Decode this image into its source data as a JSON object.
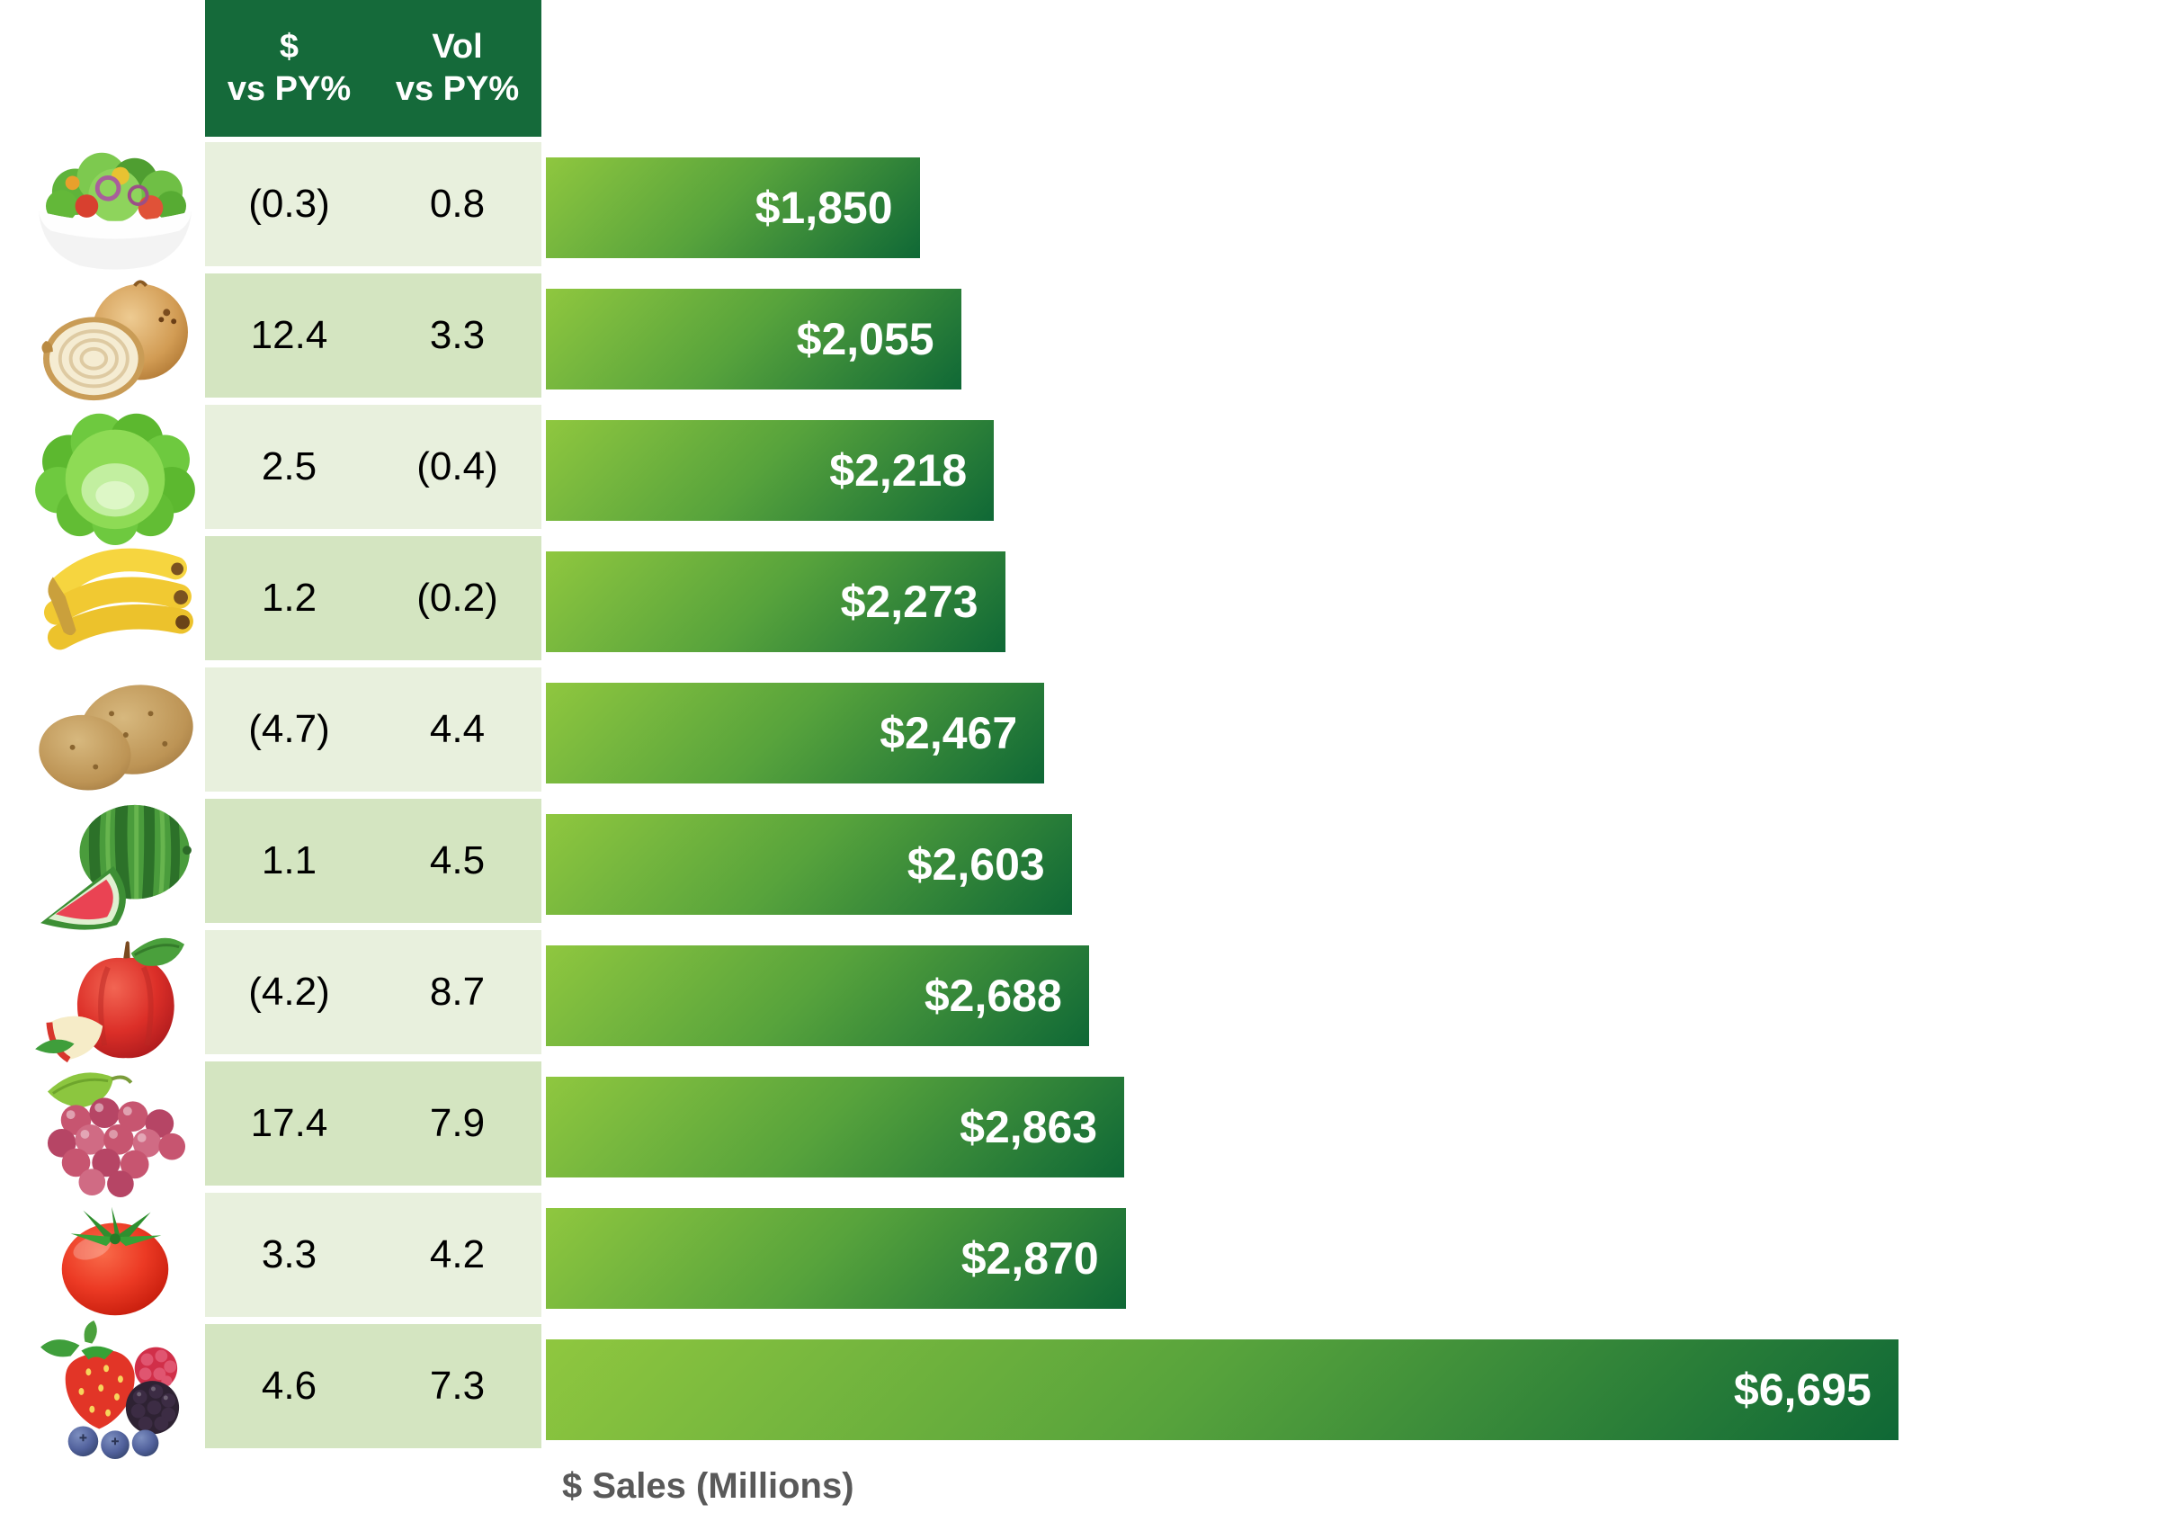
{
  "chart_data": {
    "type": "bar",
    "orientation": "horizontal",
    "xlabel": "$ Sales (Millions)",
    "x_axis_max_for_scale": 8000,
    "grid": false,
    "columns": [
      "$ vs PY%",
      "Vol vs PY%"
    ],
    "categories": [
      "Salad",
      "Onions",
      "Lettuce",
      "Bananas",
      "Potatoes",
      "Watermelon",
      "Apples",
      "Grapes",
      "Tomatoes",
      "Berries"
    ],
    "values": [
      1850,
      2055,
      2218,
      2273,
      2467,
      2603,
      2688,
      2863,
      2870,
      6695
    ],
    "rows": [
      {
        "item": "salad",
        "icon": "salad-bowl-image",
        "dollar_vs_py": "(0.3)",
        "vol_vs_py": "0.8",
        "sales": 1850,
        "sales_label": "$1,850"
      },
      {
        "item": "onions",
        "icon": "onion-image",
        "dollar_vs_py": "12.4",
        "vol_vs_py": "3.3",
        "sales": 2055,
        "sales_label": "$2,055"
      },
      {
        "item": "lettuce",
        "icon": "lettuce-image",
        "dollar_vs_py": "2.5",
        "vol_vs_py": "(0.4)",
        "sales": 2218,
        "sales_label": "$2,218"
      },
      {
        "item": "bananas",
        "icon": "bananas-image",
        "dollar_vs_py": "1.2",
        "vol_vs_py": "(0.2)",
        "sales": 2273,
        "sales_label": "$2,273"
      },
      {
        "item": "potatoes",
        "icon": "potatoes-image",
        "dollar_vs_py": "(4.7)",
        "vol_vs_py": "4.4",
        "sales": 2467,
        "sales_label": "$2,467"
      },
      {
        "item": "watermelon",
        "icon": "watermelon-image",
        "dollar_vs_py": "1.1",
        "vol_vs_py": "4.5",
        "sales": 2603,
        "sales_label": "$2,603"
      },
      {
        "item": "apples",
        "icon": "apple-image",
        "dollar_vs_py": "(4.2)",
        "vol_vs_py": "8.7",
        "sales": 2688,
        "sales_label": "$2,688"
      },
      {
        "item": "grapes",
        "icon": "grapes-image",
        "dollar_vs_py": "17.4",
        "vol_vs_py": "7.9",
        "sales": 2863,
        "sales_label": "$2,863"
      },
      {
        "item": "tomatoes",
        "icon": "tomato-image",
        "dollar_vs_py": "3.3",
        "vol_vs_py": "4.2",
        "sales": 2870,
        "sales_label": "$2,870"
      },
      {
        "item": "berries",
        "icon": "berries-image",
        "dollar_vs_py": "4.6",
        "vol_vs_py": "7.3",
        "sales": 6695,
        "sales_label": "$6,695"
      }
    ]
  },
  "header": {
    "col1_line1": "$",
    "col1_line2": "vs PY%",
    "col2_line1": "Vol",
    "col2_line2": "vs PY%"
  },
  "axis": {
    "label": "$ Sales (Millions)"
  },
  "colors": {
    "header_bg": "#156A3A",
    "row_bg_light": "#E8F0DD",
    "row_bg_dark": "#D4E5C1",
    "bar_gradient_start": "#8FC73F",
    "bar_gradient_end": "#0F6836",
    "bar_label_text": "#FFFFFF",
    "axis_label_text": "#595959",
    "table_text": "#000000"
  }
}
